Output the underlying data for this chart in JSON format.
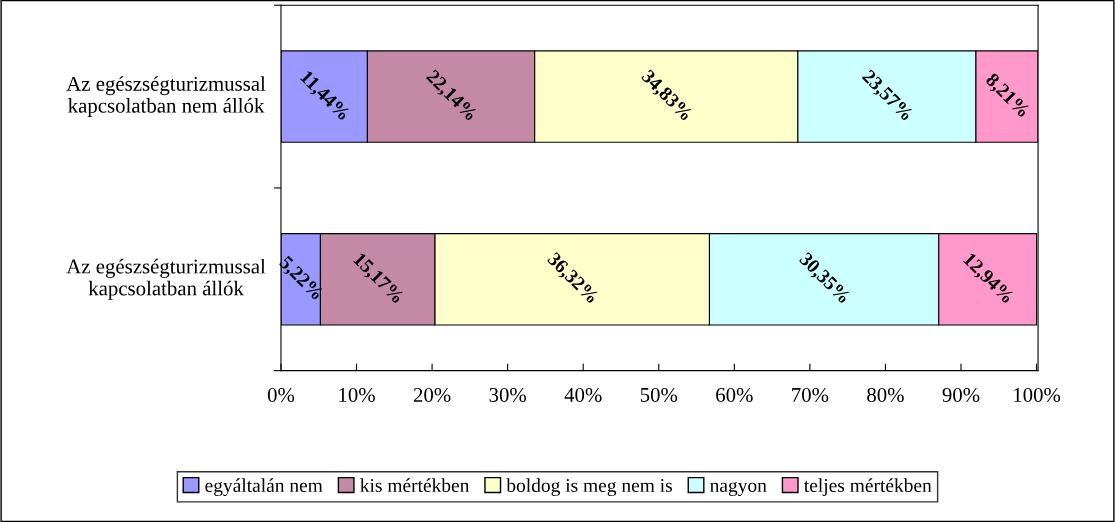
{
  "chart_data": {
    "type": "bar",
    "orientation": "horizontal",
    "stacked": true,
    "categories": [
      "Az egészségturizmussal\nkapcsolatban nem állók",
      "Az egészségturizmussal\nkapcsolatban állók"
    ],
    "series": [
      {
        "name": "egyáltalán nem",
        "color": "#9999ff",
        "values": [
          11.44,
          5.22
        ],
        "value_labels": [
          "11,44%",
          "5,22%"
        ]
      },
      {
        "name": "kis mértékben",
        "color": "#c48aa5",
        "values": [
          22.14,
          15.17
        ],
        "value_labels": [
          "22,14%",
          "15,17%"
        ]
      },
      {
        "name": "boldog is meg nem is",
        "color": "#ffffcc",
        "values": [
          34.83,
          36.32
        ],
        "value_labels": [
          "34,83%",
          "36,32%"
        ]
      },
      {
        "name": "nagyon",
        "color": "#ccffff",
        "values": [
          23.57,
          30.35
        ],
        "value_labels": [
          "23,57%",
          "30,35%"
        ]
      },
      {
        "name": "teljes mértékben",
        "color": "#ff99cc",
        "values": [
          8.21,
          12.94
        ],
        "value_labels": [
          "8,21%",
          "12,94%"
        ]
      }
    ],
    "xlim": [
      0,
      100.2
    ],
    "xticks": [
      {
        "value": 0,
        "label": "0%"
      },
      {
        "value": 10,
        "label": "10%"
      },
      {
        "value": 20,
        "label": "20%"
      },
      {
        "value": 30,
        "label": "30%"
      },
      {
        "value": 40,
        "label": "40%"
      },
      {
        "value": 50,
        "label": "50%"
      },
      {
        "value": 60,
        "label": "60%"
      },
      {
        "value": 70,
        "label": "70%"
      },
      {
        "value": 80,
        "label": "80%"
      },
      {
        "value": 90,
        "label": "90%"
      },
      {
        "value": 100,
        "label": "100%"
      }
    ],
    "grid": false,
    "legend": "bottom"
  }
}
